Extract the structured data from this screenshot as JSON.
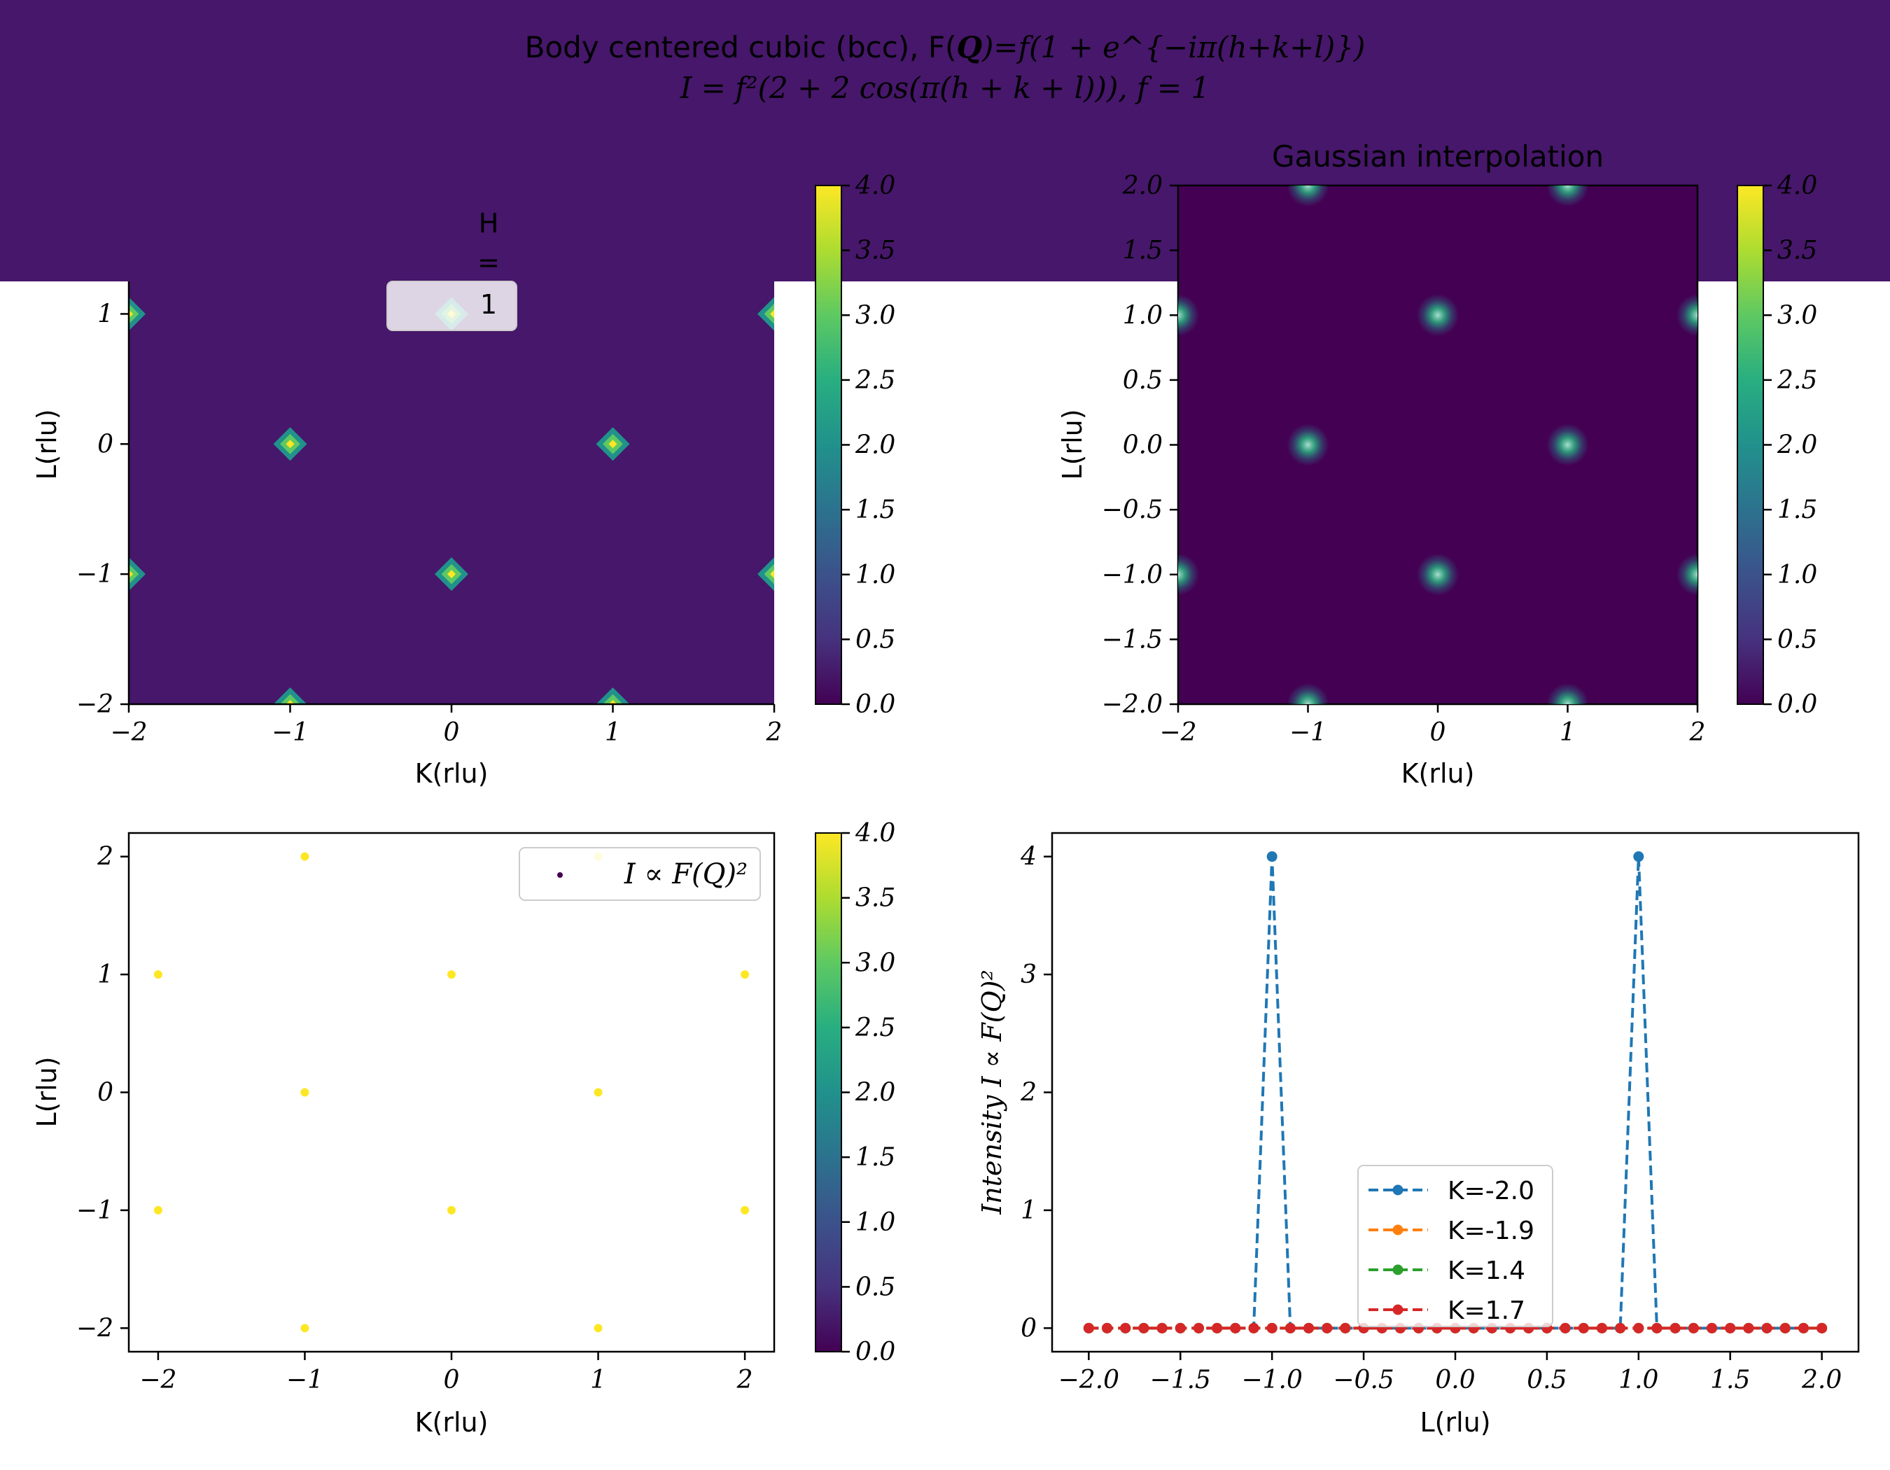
{
  "colors": {
    "title_band": "#46176a",
    "viridis_low": "#440154",
    "viridis_high": "#fde725",
    "series_k_m2_0": "#1f77b4",
    "series_k_m1_9": "#ff7f0e",
    "series_k_1_4": "#2ca02c",
    "series_k_1_7": "#d62728"
  },
  "figure": {
    "title_line1_text": "Body centered cubic (bcc), F(",
    "title_line1_bold": "Q",
    "title_line1_math": ")=f(1 + e^{−iπ(h+k+l)})",
    "title_line2": "I = f²(2 + 2 cos(π(h + k + l))), f = 1"
  },
  "chart_data": [
    {
      "type": "heatmap",
      "panel": "top-left",
      "title": "",
      "xlabel": "K(rlu)",
      "ylabel": "L(rlu)",
      "xlim": [
        -2,
        2
      ],
      "ylim": [
        -2,
        1.25
      ],
      "xticks": [
        "−2",
        "−1",
        "0",
        "1",
        "2"
      ],
      "yticks": [
        "−2",
        "−1",
        "0",
        "1"
      ],
      "annotation": [
        "H",
        "=",
        "1"
      ],
      "peaks": [
        [
          -2,
          1
        ],
        [
          0,
          1
        ],
        [
          2,
          1
        ],
        [
          -1,
          0
        ],
        [
          1,
          0
        ],
        [
          -2,
          -1
        ],
        [
          0,
          -1
        ],
        [
          2,
          -1
        ],
        [
          -1,
          -2
        ],
        [
          1,
          -2
        ]
      ],
      "colorbar": {
        "min": 0,
        "max": 4,
        "ticks": [
          "0.0",
          "0.5",
          "1.0",
          "1.5",
          "2.0",
          "2.5",
          "3.0",
          "3.5",
          "4.0"
        ]
      }
    },
    {
      "type": "heatmap",
      "panel": "top-right",
      "title": "Gaussian interpolation",
      "xlabel": "K(rlu)",
      "ylabel": "L(rlu)",
      "xlim": [
        -2,
        2
      ],
      "ylim": [
        -2,
        2
      ],
      "xticks": [
        "−2",
        "−1",
        "0",
        "1",
        "2"
      ],
      "yticks": [
        "−2.0",
        "−1.5",
        "−1.0",
        "−0.5",
        "0.0",
        "0.5",
        "1.0",
        "1.5",
        "2.0"
      ],
      "peaks": [
        [
          -1,
          2
        ],
        [
          1,
          2
        ],
        [
          -2,
          1
        ],
        [
          0,
          1
        ],
        [
          2,
          1
        ],
        [
          -1,
          0
        ],
        [
          1,
          0
        ],
        [
          -2,
          -1
        ],
        [
          0,
          -1
        ],
        [
          2,
          -1
        ],
        [
          -1,
          -2
        ],
        [
          1,
          -2
        ]
      ],
      "colorbar": {
        "min": 0,
        "max": 4,
        "ticks": [
          "0.0",
          "0.5",
          "1.0",
          "1.5",
          "2.0",
          "2.5",
          "3.0",
          "3.5",
          "4.0"
        ]
      }
    },
    {
      "type": "scatter",
      "panel": "bottom-left",
      "xlabel": "K(rlu)",
      "ylabel": "L(rlu)",
      "xlim": [
        -2.2,
        2.2
      ],
      "ylim": [
        -2.2,
        2.2
      ],
      "xticks": [
        "−2",
        "−1",
        "0",
        "1",
        "2"
      ],
      "yticks": [
        "−2",
        "−1",
        "0",
        "1",
        "2"
      ],
      "legend": "I ∝ F(Q)²",
      "legend_position": "upper right",
      "points": [
        [
          -1,
          2
        ],
        [
          1,
          2
        ],
        [
          -2,
          1
        ],
        [
          0,
          1
        ],
        [
          2,
          1
        ],
        [
          -1,
          0
        ],
        [
          1,
          0
        ],
        [
          -2,
          -1
        ],
        [
          0,
          -1
        ],
        [
          2,
          -1
        ],
        [
          -1,
          -2
        ],
        [
          1,
          -2
        ]
      ],
      "point_value": 4,
      "colorbar": {
        "min": 0,
        "max": 4,
        "ticks": [
          "0.0",
          "0.5",
          "1.0",
          "1.5",
          "2.0",
          "2.5",
          "3.0",
          "3.5",
          "4.0"
        ]
      }
    },
    {
      "type": "line",
      "panel": "bottom-right",
      "xlabel": "L(rlu)",
      "ylabel": "Intensity I ∝ F(Q)²",
      "xlim": [
        -2.2,
        2.2
      ],
      "ylim": [
        -0.2,
        4.2
      ],
      "xticks": [
        "−2.0",
        "−1.5",
        "−1.0",
        "−0.5",
        "0.0",
        "0.5",
        "1.0",
        "1.5",
        "2.0"
      ],
      "yticks": [
        "0",
        "1",
        "2",
        "3",
        "4"
      ],
      "legend_position": "lower center",
      "x": {
        "start": -2.0,
        "stop": 2.0,
        "step": 0.1
      },
      "series": [
        {
          "name": "K=-2.0",
          "peaks_at": [
            -1.0,
            1.0
          ],
          "peak_value": 4,
          "baseline": 0
        },
        {
          "name": "K=-1.9",
          "peaks_at": [],
          "peak_value": 0,
          "baseline": 0
        },
        {
          "name": "K=1.4",
          "peaks_at": [],
          "peak_value": 0,
          "baseline": 0
        },
        {
          "name": "K=1.7",
          "peaks_at": [],
          "peak_value": 0,
          "baseline": 0
        }
      ]
    }
  ]
}
